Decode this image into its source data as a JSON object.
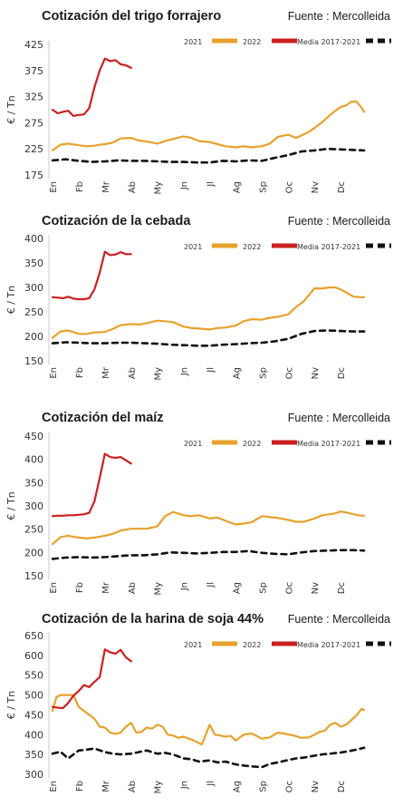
{
  "chart_data": [
    {
      "type": "line",
      "title": "Cotización del trigo forrajero",
      "source": "Fuente : Mercolleida",
      "ylabel": "€ / Tn",
      "ylim": [
        175,
        425
      ],
      "yticks": [
        175,
        225,
        275,
        325,
        375,
        425
      ],
      "months": [
        "En",
        "Fb",
        "Mr",
        "Ab",
        "My",
        "Jn",
        "Jl",
        "Ag",
        "Sp",
        "Oc",
        "Nv",
        "Dc"
      ],
      "legend": [
        {
          "label": "2021",
          "color": "#e8a12c"
        },
        {
          "label": "2022",
          "color": "#cc1f1f"
        },
        {
          "label": "Media 2017-2021",
          "color": "#111111",
          "dashed": true
        }
      ],
      "series": [
        {
          "name": "2021",
          "color": "#e8a12c",
          "x": [
            0,
            0.3,
            0.6,
            1,
            1.3,
            1.6,
            1.8,
            2,
            2.3,
            2.6,
            3,
            3.3,
            3.6,
            4,
            4.3,
            4.6,
            5,
            5.3,
            5.6,
            6,
            6.3,
            6.6,
            7,
            7.3,
            7.6,
            7.8,
            8,
            8.3,
            8.6,
            9,
            9.3,
            9.6,
            9.8,
            10,
            10.3,
            10.6,
            10.8,
            11,
            11.2,
            11.4,
            11.6,
            11.8,
            11.9
          ],
          "y": [
            222,
            233,
            235,
            232,
            230,
            231,
            233,
            234,
            237,
            245,
            246,
            241,
            239,
            235,
            240,
            244,
            249,
            246,
            240,
            238,
            234,
            230,
            228,
            230,
            228,
            229,
            230,
            235,
            248,
            252,
            246,
            253,
            258,
            265,
            276,
            290,
            298,
            305,
            308,
            315,
            316,
            304,
            296
          ]
        },
        {
          "name": "2022",
          "color": "#cc1f1f",
          "x": [
            0,
            0.2,
            0.4,
            0.6,
            0.8,
            1,
            1.2,
            1.4,
            1.6,
            1.8,
            2,
            2.2,
            2.4,
            2.6,
            2.8,
            3
          ],
          "y": [
            300,
            293,
            296,
            298,
            288,
            290,
            291,
            303,
            343,
            375,
            398,
            393,
            395,
            387,
            385,
            380
          ]
        },
        {
          "name": "Media 2017-2021",
          "color": "#111111",
          "dashed": true,
          "x": [
            0,
            0.5,
            1,
            1.5,
            2,
            2.5,
            3,
            3.5,
            4,
            4.5,
            5,
            5.5,
            6,
            6.5,
            7,
            7.5,
            8,
            8.5,
            9,
            9.5,
            10,
            10.5,
            11,
            11.5,
            11.9
          ],
          "y": [
            203,
            205,
            202,
            200,
            201,
            203,
            202,
            202,
            201,
            200,
            200,
            199,
            199,
            202,
            201,
            203,
            202,
            208,
            213,
            220,
            222,
            225,
            224,
            223,
            222
          ]
        }
      ]
    },
    {
      "type": "line",
      "title": "Cotización de la cebada",
      "source": "Fuente : Mercolleida",
      "ylabel": "€ / Tn",
      "ylim": [
        150,
        400
      ],
      "yticks": [
        150,
        200,
        250,
        300,
        350,
        400
      ],
      "months": [
        "En",
        "Fb",
        "Mr",
        "Ab",
        "My",
        "Jn",
        "Jl",
        "Ag",
        "Sp",
        "Oc",
        "Nv",
        "Dc"
      ],
      "legend": [
        {
          "label": "2021",
          "color": "#e8a12c"
        },
        {
          "label": "2022",
          "color": "#cc1f1f"
        },
        {
          "label": "Media 2017-2021",
          "color": "#111111",
          "dashed": true
        }
      ],
      "series": [
        {
          "name": "2021",
          "color": "#e8a12c",
          "x": [
            0,
            0.3,
            0.6,
            1,
            1.3,
            1.6,
            2,
            2.3,
            2.6,
            3,
            3.3,
            3.6,
            4,
            4.3,
            4.6,
            5,
            5.3,
            5.6,
            6,
            6.3,
            6.6,
            7,
            7.3,
            7.6,
            8,
            8.3,
            8.6,
            9,
            9.3,
            9.6,
            9.8,
            10,
            10.3,
            10.6,
            10.8,
            11,
            11.2,
            11.5,
            11.8,
            11.9
          ],
          "y": [
            197,
            210,
            212,
            205,
            205,
            208,
            209,
            215,
            223,
            225,
            224,
            227,
            232,
            231,
            229,
            220,
            217,
            216,
            214,
            217,
            218,
            222,
            231,
            235,
            234,
            238,
            240,
            245,
            260,
            272,
            285,
            298,
            298,
            300,
            300,
            296,
            290,
            281,
            280,
            280
          ]
        },
        {
          "name": "2022",
          "color": "#cc1f1f",
          "x": [
            0,
            0.2,
            0.4,
            0.6,
            0.8,
            1,
            1.2,
            1.4,
            1.6,
            1.8,
            2,
            2.2,
            2.4,
            2.6,
            2.8,
            3
          ],
          "y": [
            280,
            279,
            278,
            281,
            277,
            276,
            276,
            278,
            296,
            330,
            373,
            366,
            367,
            372,
            368,
            368
          ]
        },
        {
          "name": "Media 2017-2021",
          "color": "#111111",
          "dashed": true,
          "x": [
            0,
            0.5,
            1,
            1.5,
            2,
            2.5,
            3,
            3.5,
            4,
            4.5,
            5,
            5.5,
            6,
            6.5,
            7,
            7.5,
            8,
            8.5,
            9,
            9.5,
            10,
            10.5,
            11,
            11.5,
            11.9
          ],
          "y": [
            186,
            188,
            187,
            186,
            186,
            187,
            187,
            186,
            185,
            183,
            182,
            181,
            181,
            183,
            184,
            186,
            187,
            190,
            195,
            205,
            211,
            212,
            211,
            210,
            210
          ]
        }
      ]
    },
    {
      "type": "line",
      "title": "Cotización del maíz",
      "source": "Fuente : Mercolleida",
      "ylabel": "€ / Tn",
      "ylim": [
        150,
        450
      ],
      "yticks": [
        150,
        200,
        250,
        300,
        350,
        400,
        450
      ],
      "months": [
        "En",
        "Fb",
        "Mr",
        "Ab",
        "My",
        "Jn",
        "Jl",
        "Ag",
        "Sp",
        "Oc",
        "Nv",
        "Dc"
      ],
      "legend": [
        {
          "label": "2021",
          "color": "#e8a12c"
        },
        {
          "label": "2022",
          "color": "#cc1f1f"
        },
        {
          "label": "Media 2017-2021",
          "color": "#111111",
          "dashed": true
        }
      ],
      "series": [
        {
          "name": "2021",
          "color": "#e8a12c",
          "x": [
            0,
            0.3,
            0.6,
            1,
            1.3,
            1.6,
            2,
            2.3,
            2.6,
            3,
            3.3,
            3.6,
            4,
            4.3,
            4.6,
            5,
            5.3,
            5.6,
            6,
            6.3,
            6.6,
            7,
            7.3,
            7.6,
            8,
            8.3,
            8.6,
            9,
            9.3,
            9.6,
            10,
            10.3,
            10.6,
            10.8,
            11,
            11.2,
            11.5,
            11.8,
            11.9
          ],
          "y": [
            218,
            233,
            236,
            232,
            230,
            232,
            236,
            240,
            247,
            251,
            251,
            251,
            256,
            278,
            287,
            280,
            278,
            280,
            273,
            275,
            268,
            260,
            262,
            265,
            278,
            276,
            274,
            270,
            266,
            266,
            273,
            280,
            282,
            284,
            288,
            286,
            282,
            279,
            279
          ]
        },
        {
          "name": "2022",
          "color": "#cc1f1f",
          "x": [
            0,
            0.2,
            0.4,
            0.6,
            0.8,
            1,
            1.2,
            1.4,
            1.6,
            1.8,
            2,
            2.2,
            2.4,
            2.6,
            2.8,
            3
          ],
          "y": [
            278,
            279,
            279,
            280,
            280,
            281,
            282,
            285,
            310,
            360,
            412,
            405,
            403,
            405,
            398,
            391
          ]
        },
        {
          "name": "Media 2017-2021",
          "color": "#111111",
          "dashed": true,
          "x": [
            0,
            0.5,
            1,
            1.5,
            2,
            2.5,
            3,
            3.5,
            4,
            4.5,
            5,
            5.5,
            6,
            6.5,
            7,
            7.5,
            8,
            8.5,
            9,
            9.5,
            10,
            10.5,
            11,
            11.5,
            11.9
          ],
          "y": [
            186,
            189,
            190,
            189,
            190,
            192,
            194,
            194,
            196,
            200,
            199,
            198,
            199,
            201,
            201,
            203,
            199,
            197,
            196,
            200,
            203,
            204,
            205,
            205,
            204
          ]
        }
      ]
    },
    {
      "type": "line",
      "title": "Cotización de la harina de soja 44%",
      "source": "Fuente : Mercolleida",
      "ylabel": "€ / Tn",
      "ylim": [
        300,
        650
      ],
      "yticks": [
        300,
        350,
        400,
        450,
        500,
        550,
        600,
        650
      ],
      "months": [
        "En",
        "Fb",
        "Mr",
        "Ab",
        "My",
        "Jn",
        "Jl",
        "Ag",
        "Sp",
        "Oc",
        "Nv",
        "Dc"
      ],
      "legend": [
        {
          "label": "2021",
          "color": "#e8a12c"
        },
        {
          "label": "2022",
          "color": "#cc1f1f"
        },
        {
          "label": "Media 2017-2021",
          "color": "#111111",
          "dashed": true
        }
      ],
      "series": [
        {
          "name": "2021",
          "color": "#e8a12c",
          "x": [
            0,
            0.15,
            0.3,
            0.8,
            1,
            1.3,
            1.6,
            1.8,
            2,
            2.2,
            2.4,
            2.6,
            2.8,
            3,
            3.2,
            3.4,
            3.6,
            3.8,
            4,
            4.2,
            4.4,
            4.6,
            4.8,
            5,
            5.2,
            5.4,
            5.7,
            6,
            6.2,
            6.4,
            6.6,
            6.8,
            7,
            7.3,
            7.6,
            8,
            8.3,
            8.6,
            8.9,
            9.2,
            9.5,
            9.8,
            10,
            10.2,
            10.4,
            10.6,
            10.8,
            11,
            11.2,
            11.4,
            11.6,
            11.8,
            11.9
          ],
          "y": [
            460,
            495,
            500,
            500,
            470,
            455,
            440,
            420,
            418,
            405,
            402,
            405,
            420,
            430,
            405,
            407,
            418,
            415,
            425,
            420,
            400,
            398,
            392,
            395,
            390,
            385,
            375,
            425,
            400,
            398,
            395,
            397,
            385,
            400,
            403,
            390,
            393,
            405,
            402,
            398,
            392,
            393,
            400,
            407,
            410,
            425,
            430,
            420,
            425,
            436,
            448,
            465,
            462
          ]
        },
        {
          "name": "2022",
          "color": "#cc1f1f",
          "x": [
            0,
            0.2,
            0.4,
            0.6,
            0.8,
            1,
            1.2,
            1.4,
            1.6,
            1.8,
            2,
            2.2,
            2.4,
            2.6,
            2.8,
            3
          ],
          "y": [
            470,
            468,
            467,
            480,
            498,
            510,
            525,
            520,
            533,
            545,
            615,
            608,
            604,
            614,
            595,
            585
          ]
        },
        {
          "name": "Media 2017-2021",
          "color": "#111111",
          "dashed": true,
          "x": [
            0,
            0.3,
            0.6,
            1,
            1.3,
            1.6,
            2,
            2.3,
            2.6,
            3,
            3.3,
            3.6,
            4,
            4.3,
            4.6,
            5,
            5.3,
            5.6,
            6,
            6.3,
            6.6,
            7,
            7.3,
            7.6,
            8,
            8.3,
            8.6,
            9,
            9.3,
            9.6,
            10,
            10.3,
            10.6,
            11,
            11.3,
            11.6,
            11.9
          ],
          "y": [
            352,
            357,
            340,
            360,
            362,
            365,
            356,
            352,
            350,
            352,
            356,
            360,
            352,
            354,
            350,
            340,
            338,
            332,
            335,
            330,
            332,
            325,
            322,
            320,
            318,
            326,
            330,
            336,
            340,
            342,
            347,
            350,
            352,
            355,
            358,
            362,
            367
          ]
        }
      ]
    }
  ]
}
